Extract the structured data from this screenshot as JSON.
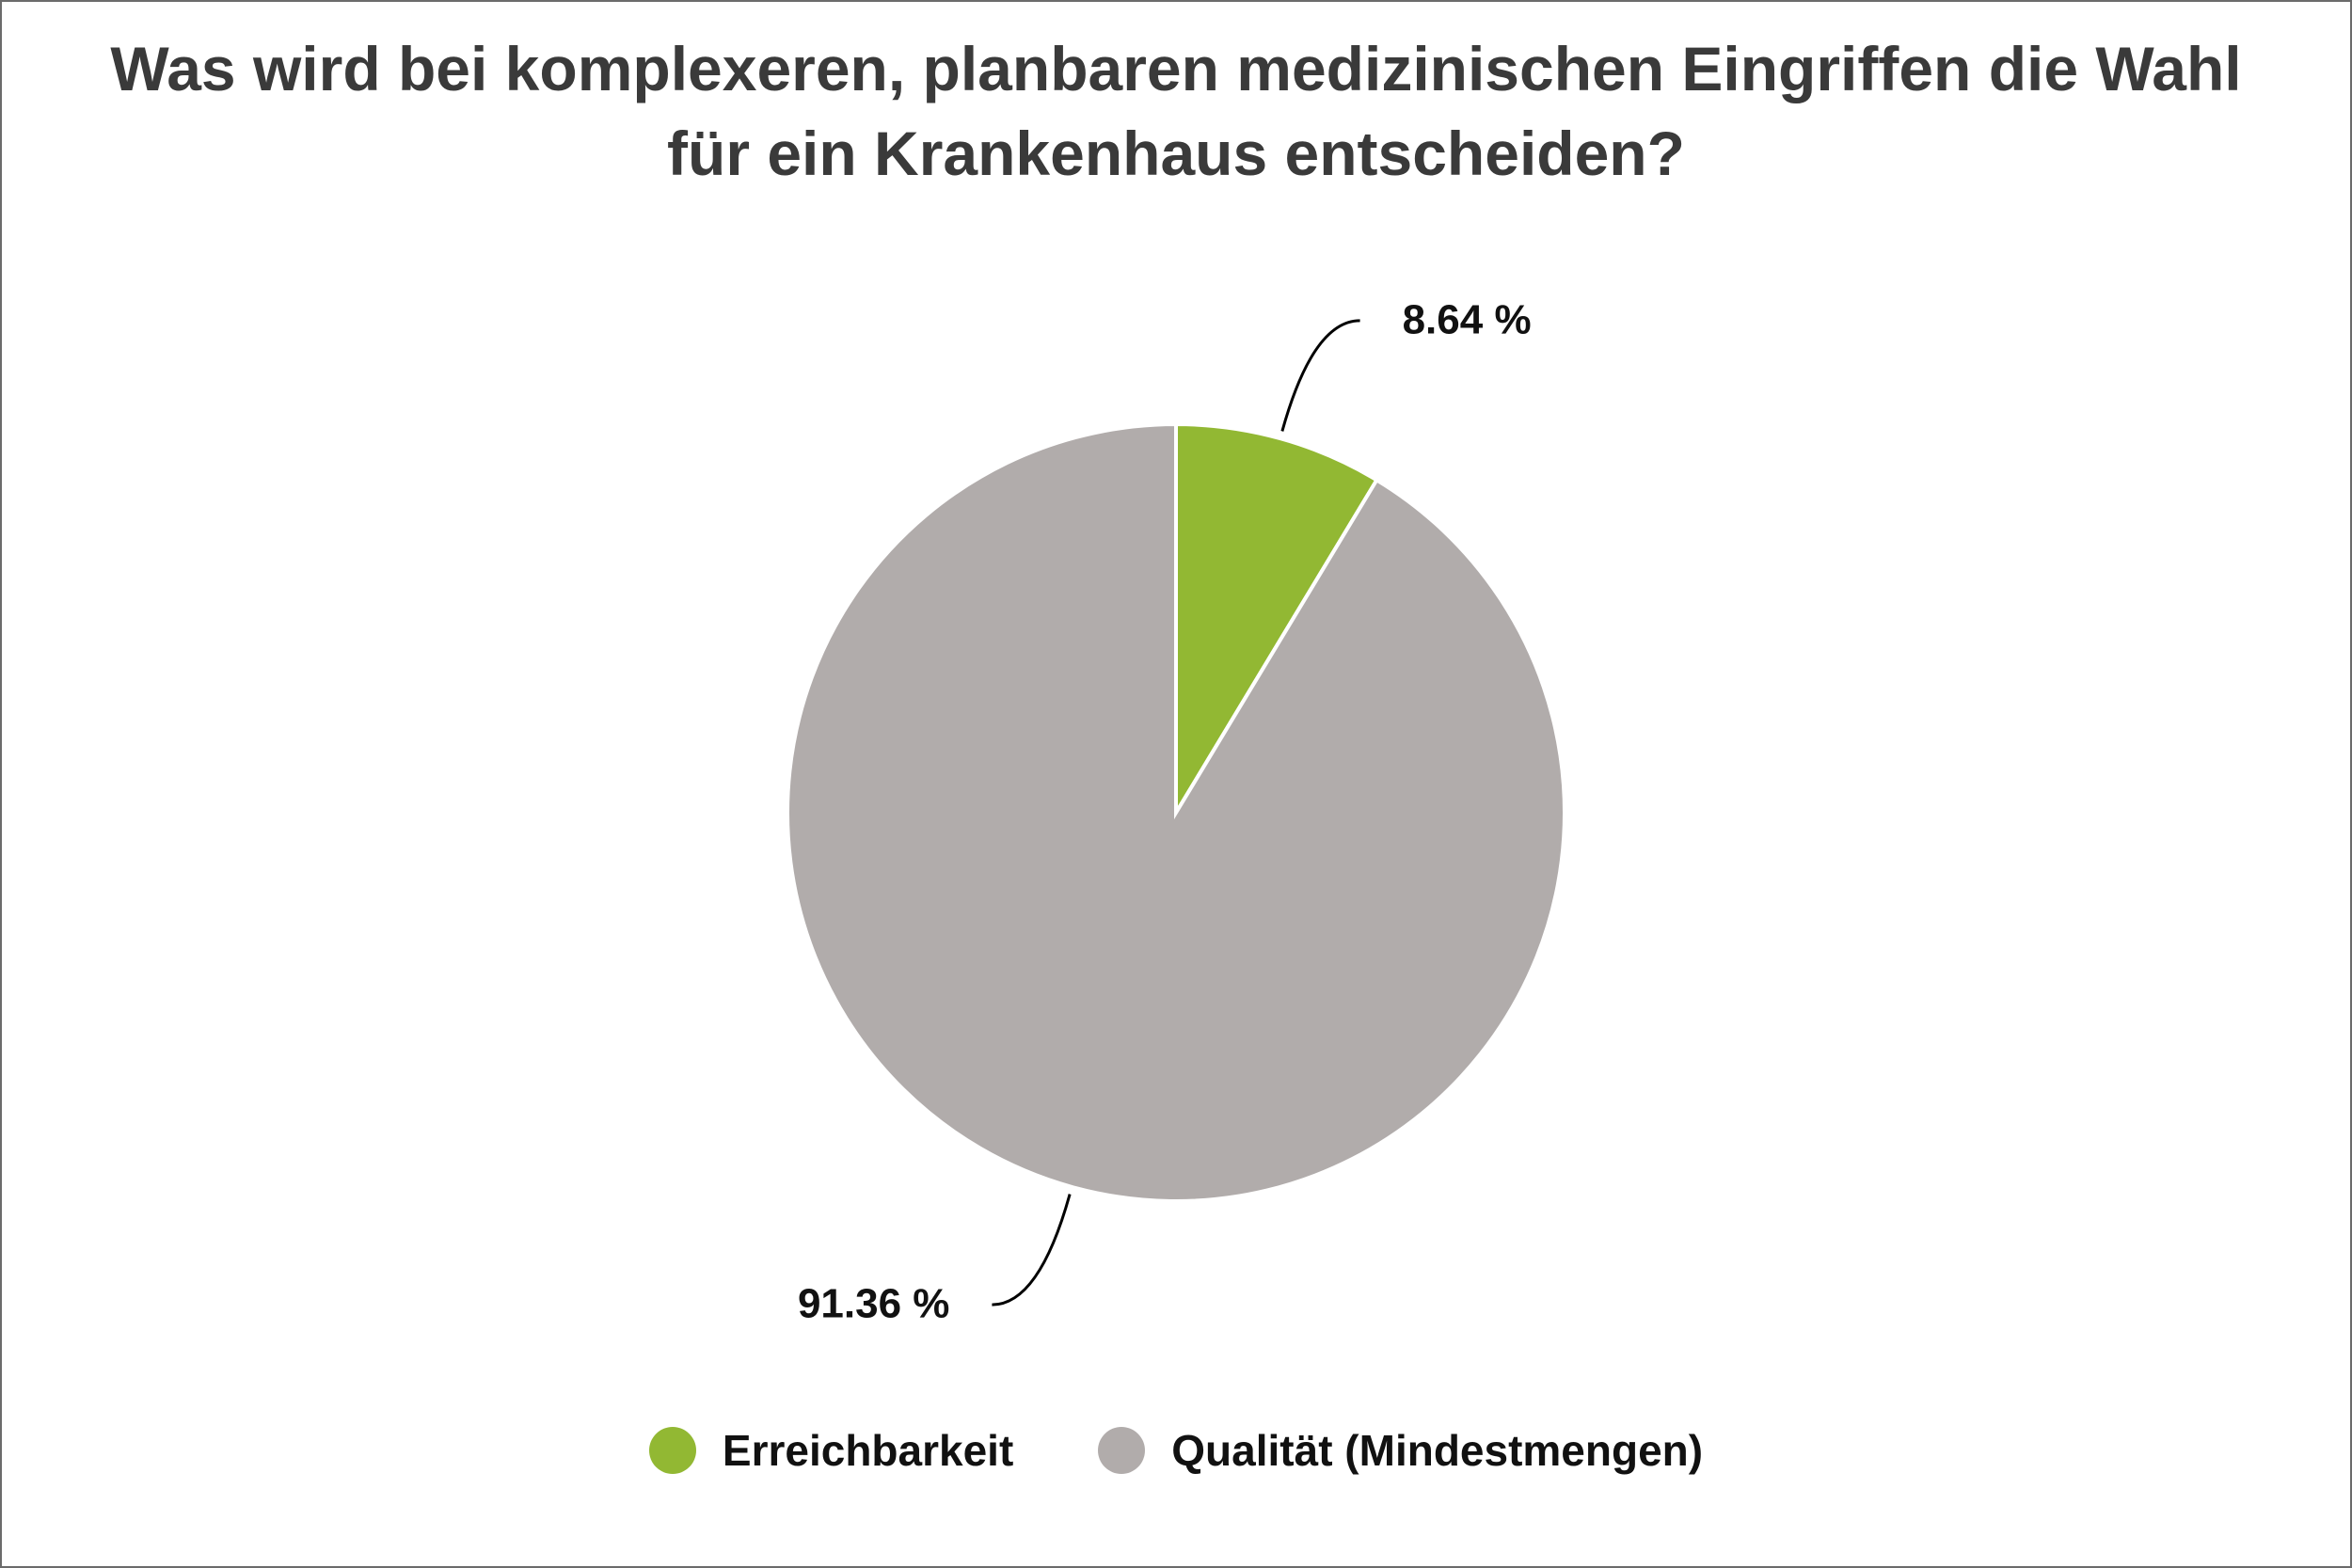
{
  "chart_data": {
    "type": "pie",
    "title": "Was wird bei komplexeren, planbaren medizinischen Eingriffen die Wahl für ein Krankenhaus entscheiden?",
    "categories": [
      "Erreichbarkeit",
      "Qualität (Mindestmengen)"
    ],
    "values": [
      8.64,
      91.36
    ],
    "value_labels": [
      "8.64 %",
      "91.36 %"
    ],
    "colors": [
      "#92b833",
      "#b1acab"
    ],
    "legend": "bottom"
  }
}
